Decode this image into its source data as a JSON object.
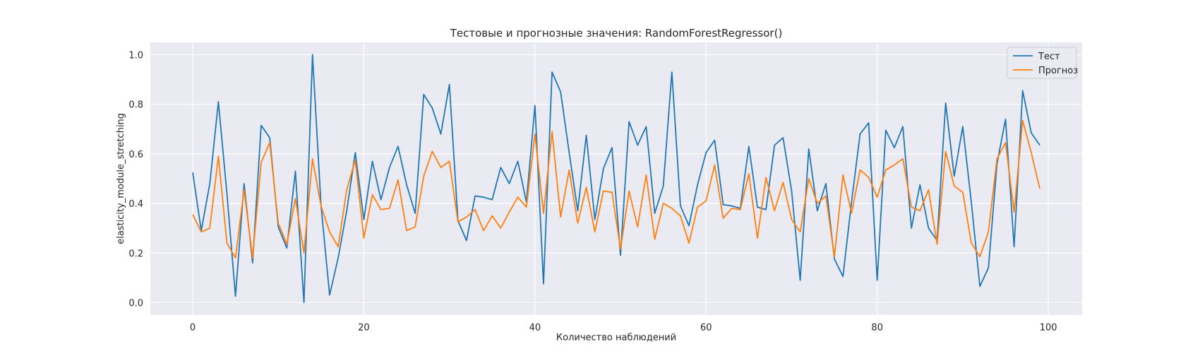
{
  "chart_data": {
    "type": "line",
    "title": "Тестовые и прогнозные значения: RandomForestRegressor()",
    "xlabel": "Количество наблюдений",
    "ylabel": "elasticity_module_stretching",
    "xlim": [
      -4.95,
      103.95
    ],
    "ylim": [
      -0.05,
      1.05
    ],
    "xticks": [
      0,
      20,
      40,
      60,
      80,
      100
    ],
    "yticks": [
      0.0,
      0.2,
      0.4,
      0.6,
      0.8,
      1.0
    ],
    "ytick_labels": [
      "0.0",
      "0.2",
      "0.4",
      "0.6",
      "0.8",
      "1.0"
    ],
    "grid": true,
    "legend_position": "top-right",
    "series": [
      {
        "name": "Тест",
        "color": "#1f77b4",
        "values": [
          0.525,
          0.29,
          0.48,
          0.81,
          0.44,
          0.025,
          0.48,
          0.16,
          0.715,
          0.665,
          0.305,
          0.22,
          0.53,
          0.0,
          1.0,
          0.39,
          0.03,
          0.18,
          0.37,
          0.605,
          0.335,
          0.57,
          0.415,
          0.545,
          0.63,
          0.475,
          0.36,
          0.84,
          0.785,
          0.68,
          0.88,
          0.33,
          0.25,
          0.43,
          0.425,
          0.415,
          0.545,
          0.48,
          0.57,
          0.405,
          0.795,
          0.075,
          0.93,
          0.85,
          0.605,
          0.37,
          0.675,
          0.335,
          0.54,
          0.625,
          0.19,
          0.73,
          0.635,
          0.71,
          0.36,
          0.47,
          0.93,
          0.39,
          0.31,
          0.475,
          0.605,
          0.655,
          0.395,
          0.39,
          0.38,
          0.63,
          0.385,
          0.375,
          0.635,
          0.665,
          0.45,
          0.09,
          0.62,
          0.37,
          0.48,
          0.175,
          0.105,
          0.405,
          0.68,
          0.725,
          0.09,
          0.695,
          0.625,
          0.71,
          0.3,
          0.475,
          0.3,
          0.25,
          0.805,
          0.51,
          0.71,
          0.405,
          0.065,
          0.14,
          0.56,
          0.74,
          0.225,
          0.855,
          0.685,
          0.635
        ]
      },
      {
        "name": "Прогноз",
        "color": "#ff7f0e",
        "values": [
          0.355,
          0.285,
          0.3,
          0.59,
          0.24,
          0.18,
          0.455,
          0.18,
          0.565,
          0.645,
          0.32,
          0.235,
          0.42,
          0.2,
          0.58,
          0.39,
          0.285,
          0.225,
          0.455,
          0.575,
          0.26,
          0.435,
          0.375,
          0.38,
          0.495,
          0.29,
          0.305,
          0.51,
          0.61,
          0.545,
          0.57,
          0.325,
          0.345,
          0.375,
          0.29,
          0.35,
          0.3,
          0.365,
          0.425,
          0.385,
          0.68,
          0.36,
          0.69,
          0.345,
          0.535,
          0.32,
          0.465,
          0.285,
          0.45,
          0.445,
          0.215,
          0.45,
          0.305,
          0.515,
          0.255,
          0.4,
          0.38,
          0.35,
          0.24,
          0.385,
          0.41,
          0.555,
          0.34,
          0.38,
          0.375,
          0.52,
          0.26,
          0.505,
          0.37,
          0.485,
          0.335,
          0.285,
          0.5,
          0.4,
          0.43,
          0.185,
          0.515,
          0.36,
          0.535,
          0.505,
          0.425,
          0.535,
          0.555,
          0.58,
          0.385,
          0.37,
          0.455,
          0.235,
          0.61,
          0.47,
          0.445,
          0.24,
          0.185,
          0.285,
          0.58,
          0.645,
          0.365,
          0.735,
          0.605,
          0.46
        ]
      }
    ]
  }
}
